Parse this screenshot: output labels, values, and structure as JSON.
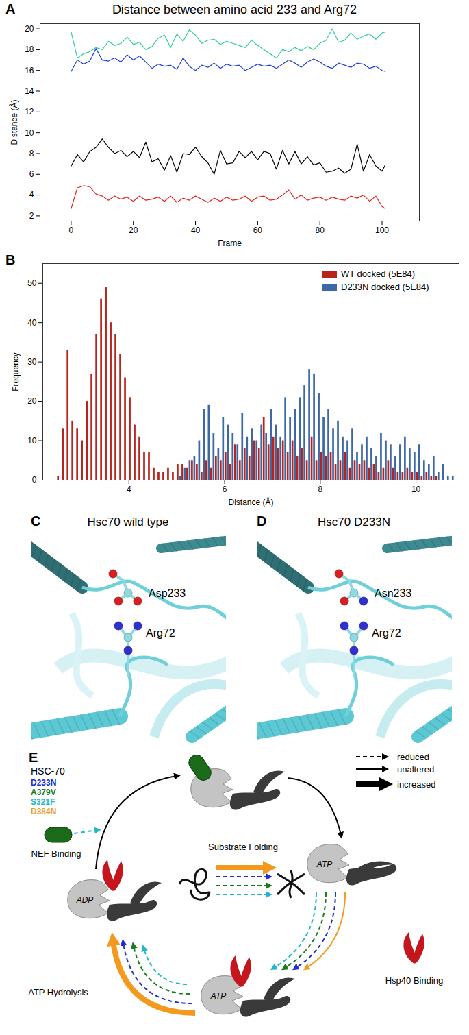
{
  "panel_labels": [
    "A",
    "B",
    "C",
    "D",
    "E"
  ],
  "chart_data": [
    {
      "type": "line",
      "title": "Distance between amino acid 233 and Arg72",
      "x_label": "Frame",
      "y_label": "Distance (Å)",
      "x": [
        0,
        2,
        4,
        6,
        8,
        10,
        12,
        14,
        16,
        18,
        20,
        22,
        24,
        26,
        28,
        30,
        32,
        34,
        36,
        38,
        40,
        42,
        44,
        46,
        48,
        50,
        52,
        54,
        56,
        58,
        60,
        62,
        64,
        66,
        68,
        70,
        72,
        74,
        76,
        78,
        80,
        82,
        84,
        86,
        88,
        90,
        92,
        94,
        96,
        98,
        100,
        101
      ],
      "series": [
        {
          "color": "#2fcf9a",
          "values": [
            19.7,
            17.2,
            17.6,
            17.8,
            18.2,
            18.0,
            18.8,
            18.4,
            18.6,
            19.2,
            18.5,
            18.7,
            18.0,
            18.3,
            19.1,
            19.4,
            18.2,
            19.5,
            18.8,
            19.9,
            19.4,
            18.6,
            18.9,
            19.0,
            18.5,
            18.8,
            18.6,
            18.4,
            18.2,
            18.9,
            18.4,
            18.0,
            17.6,
            17.2,
            18.0,
            17.8,
            18.2,
            17.9,
            18.3,
            18.0,
            18.6,
            18.9,
            20.0,
            18.7,
            18.9,
            19.6,
            19.0,
            19.3,
            19.5,
            19.0,
            19.6,
            19.7
          ]
        },
        {
          "color": "#1f3fe0",
          "values": [
            15.9,
            17.0,
            16.6,
            16.9,
            18.1,
            17.0,
            16.9,
            17.2,
            16.8,
            17.5,
            17.0,
            17.4,
            16.8,
            16.2,
            16.6,
            16.4,
            16.5,
            16.1,
            17.2,
            16.4,
            16.0,
            16.5,
            16.3,
            16.7,
            16.2,
            16.6,
            16.4,
            16.5,
            16.0,
            16.3,
            16.6,
            16.4,
            16.5,
            16.2,
            16.6,
            17.0,
            16.7,
            16.3,
            16.8,
            17.1,
            16.8,
            16.4,
            16.2,
            16.7,
            16.5,
            16.3,
            16.7,
            16.6,
            16.2,
            16.4,
            16.0,
            15.9
          ]
        },
        {
          "color": "#000000",
          "values": [
            6.8,
            7.9,
            7.2,
            8.2,
            8.6,
            9.4,
            8.6,
            8.0,
            8.3,
            7.7,
            8.2,
            7.6,
            9.1,
            7.2,
            7.5,
            6.4,
            7.8,
            6.2,
            8.0,
            7.9,
            8.6,
            7.7,
            7.1,
            6.0,
            8.3,
            7.0,
            7.1,
            8.2,
            7.6,
            8.2,
            7.4,
            8.2,
            8.0,
            6.5,
            8.3,
            7.0,
            8.2,
            7.0,
            7.7,
            6.9,
            7.1,
            6.2,
            6.3,
            6.6,
            6.1,
            6.5,
            8.9,
            6.3,
            7.9,
            6.8,
            6.3,
            6.9
          ]
        },
        {
          "color": "#e8201a",
          "values": [
            2.7,
            4.7,
            4.9,
            4.8,
            4.1,
            3.9,
            3.5,
            3.9,
            3.6,
            3.8,
            3.4,
            3.9,
            3.5,
            3.6,
            3.8,
            3.4,
            3.9,
            3.3,
            3.7,
            3.5,
            3.9,
            3.6,
            3.3,
            3.7,
            3.4,
            3.8,
            3.5,
            3.6,
            3.9,
            3.4,
            3.8,
            3.9,
            3.5,
            3.6,
            4.0,
            4.5,
            3.6,
            4.0,
            3.5,
            3.7,
            3.8,
            3.5,
            3.8,
            3.6,
            3.5,
            3.9,
            3.7,
            4.0,
            3.4,
            3.9,
            2.9,
            2.7
          ]
        }
      ],
      "xlim": [
        -10,
        112
      ],
      "ylim": [
        1.5,
        20.5
      ],
      "xticks": [
        0,
        20,
        40,
        60,
        80,
        100
      ],
      "yticks": [
        2,
        4,
        6,
        8,
        10,
        12,
        14,
        16,
        18,
        20
      ]
    },
    {
      "type": "histogram",
      "x_label": "Distance (Å)",
      "y_label": "Frequency",
      "bins": [
        2.5,
        2.6,
        2.7,
        2.8,
        2.9,
        3.0,
        3.1,
        3.2,
        3.3,
        3.4,
        3.5,
        3.6,
        3.7,
        3.8,
        3.9,
        4.0,
        4.1,
        4.2,
        4.3,
        4.4,
        4.5,
        4.6,
        4.7,
        4.8,
        4.9,
        5.0,
        5.1,
        5.2,
        5.3,
        5.4,
        5.5,
        5.6,
        5.7,
        5.8,
        5.9,
        6.0,
        6.1,
        6.2,
        6.3,
        6.4,
        6.5,
        6.6,
        6.7,
        6.8,
        6.9,
        7.0,
        7.1,
        7.2,
        7.3,
        7.4,
        7.5,
        7.6,
        7.7,
        7.8,
        7.9,
        8.0,
        8.1,
        8.2,
        8.3,
        8.4,
        8.5,
        8.6,
        8.7,
        8.8,
        8.9,
        9.0,
        9.1,
        9.2,
        9.3,
        9.4,
        9.5,
        9.6,
        9.7,
        9.8,
        9.9,
        10.0,
        10.1,
        10.2,
        10.3,
        10.4,
        10.5,
        10.6,
        10.7,
        10.8
      ],
      "series": [
        {
          "name": "WT docked (5E84)",
          "color": "#b8231b",
          "values": [
            1,
            13,
            33,
            15,
            13,
            10,
            20,
            27,
            37,
            46,
            49,
            40,
            37,
            32,
            26,
            21,
            14,
            11,
            7,
            7,
            3,
            2,
            2,
            3,
            2,
            4,
            4,
            3,
            5,
            4,
            2,
            5,
            3,
            6,
            5,
            7,
            4,
            9,
            5,
            8,
            6,
            10,
            8,
            16,
            9,
            11,
            8,
            10,
            7,
            10,
            6,
            8,
            5,
            11,
            5,
            7,
            6,
            7,
            4,
            5,
            7,
            3,
            5,
            4,
            5,
            3,
            4,
            2,
            3,
            5,
            3,
            2,
            2,
            3,
            2,
            2,
            1,
            2,
            1,
            1,
            0,
            0,
            0
          ]
        },
        {
          "name": "D233N docked (5E84)",
          "color": "#3c68a6",
          "values": [
            0,
            0,
            0,
            0,
            0,
            0,
            0,
            0,
            0,
            0,
            0,
            0,
            0,
            0,
            0,
            0,
            0,
            0,
            0,
            0,
            0,
            0,
            0,
            0,
            0,
            1,
            3,
            5,
            6,
            10,
            18,
            19,
            12,
            8,
            16,
            14,
            12,
            9,
            17,
            11,
            13,
            10,
            14,
            12,
            18,
            14,
            11,
            21,
            16,
            18,
            21,
            24,
            28,
            27,
            22,
            16,
            18,
            13,
            15,
            11,
            10,
            13,
            7,
            9,
            11,
            8,
            6,
            12,
            10,
            9,
            6,
            9,
            11,
            8,
            7,
            9,
            5,
            4,
            6,
            2,
            4,
            1,
            1
          ]
        }
      ],
      "xlim": [
        2.2,
        10.9
      ],
      "ylim": [
        0,
        55
      ],
      "xticks": [
        4,
        6,
        8,
        10
      ],
      "yticks": [
        0,
        10,
        20,
        30,
        40,
        50
      ],
      "legend": "top-right"
    }
  ],
  "images": [
    {
      "title": "Hsc70 wild type",
      "labels": [
        "Asp233",
        "Arg72"
      ]
    },
    {
      "title": "Hsc70 D233N",
      "labels": [
        "Asn233",
        "Arg72"
      ]
    }
  ],
  "diagram": {
    "title": "HSC-70",
    "mutants": [
      {
        "name": "D233N",
        "color": "#1f2fd0"
      },
      {
        "name": "A379V",
        "color": "#1e7a1e"
      },
      {
        "name": "S321F",
        "color": "#20b8c8"
      },
      {
        "name": "D384N",
        "color": "#f39a1e"
      }
    ],
    "legend": [
      "reduced",
      "unaltered",
      "increased"
    ],
    "states": [
      "ADP",
      "ATP",
      "ATP"
    ],
    "steps": [
      {
        "label": "NEF Binding",
        "effects": [
          {
            "mutant": "S321F",
            "effect": "reduced"
          }
        ]
      },
      {
        "label": "Hsp40 Binding",
        "effects": [
          {
            "mutant": "S321F",
            "effect": "reduced"
          },
          {
            "mutant": "A379V",
            "effect": "reduced"
          },
          {
            "mutant": "D233N",
            "effect": "reduced"
          },
          {
            "mutant": "D384N",
            "effect": "unaltered"
          }
        ]
      },
      {
        "label": "ATP Hydrolysis",
        "effects": [
          {
            "mutant": "D384N",
            "effect": "increased"
          },
          {
            "mutant": "D233N",
            "effect": "reduced"
          },
          {
            "mutant": "A379V",
            "effect": "reduced"
          },
          {
            "mutant": "S321F",
            "effect": "reduced"
          }
        ]
      },
      {
        "label": "Substrate Folding",
        "effects": [
          {
            "mutant": "D384N",
            "effect": "increased"
          },
          {
            "mutant": "D233N",
            "effect": "reduced"
          },
          {
            "mutant": "A379V",
            "effect": "reduced"
          },
          {
            "mutant": "S321F",
            "effect": "reduced"
          }
        ]
      }
    ]
  }
}
